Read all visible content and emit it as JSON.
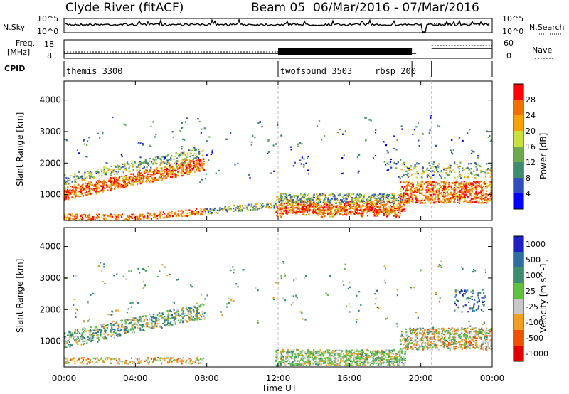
{
  "header": {
    "site": "Clyde River (fitACF)",
    "beam": "Beam 05",
    "dates": "06/Mar/2016 - 07/Mar/2016"
  },
  "top_panels": {
    "nsky_label": "N.Sky",
    "nsky_ticks": [
      "10^5",
      "10^0"
    ],
    "nsky_right_ticks": [
      "10^5",
      "10^0"
    ],
    "nsearch_label": "N.Search",
    "freq_label_1": "Freq.",
    "freq_label_2": "[MHz]",
    "freq_ticks": [
      "18",
      "8"
    ],
    "nave_ticks": [
      "60",
      "0"
    ],
    "nave_label": "Nave",
    "cpid_label": "CPID",
    "cpid_segments": [
      {
        "label": "themis 3300",
        "start_h": 0,
        "end_h": 12
      },
      {
        "label": "twofsound 3503",
        "start_h": 12,
        "end_h": 19.5
      },
      {
        "label": "rbsp 200",
        "start_h": 19.5,
        "end_h": 20.6
      }
    ]
  },
  "x_axis": {
    "label": "Time UT",
    "range_h": [
      0,
      24
    ],
    "ticks": [
      "00:00",
      "04:00",
      "08:00",
      "12:00",
      "16:00",
      "20:00",
      "00:00"
    ]
  },
  "colors": {
    "power": [
      "#0000ff",
      "#2f4fbf",
      "#3c8c6e",
      "#6fa94e",
      "#c8e040",
      "#f5a300",
      "#f07000",
      "#ff0000"
    ],
    "velocity": [
      "#e00000",
      "#f05000",
      "#f0a020",
      "#c8c8c8",
      "#60c040",
      "#3c8c6e",
      "#2f6f9f",
      "#2020c0"
    ]
  },
  "chart_data": [
    {
      "type": "heatmap",
      "name": "power",
      "ylabel": "Slant Range [km]",
      "yticks": [
        "1000",
        "2000",
        "3000",
        "4000"
      ],
      "ylim": [
        180,
        4600
      ],
      "colorbar_label": "Power [dB]",
      "colorbar_ticks": [
        "4",
        "8",
        "12",
        "16",
        "20",
        "24",
        "28"
      ],
      "colorbar_range": [
        0,
        32
      ]
    },
    {
      "type": "heatmap",
      "name": "velocity",
      "ylabel": "Slant Range [km]",
      "yticks": [
        "1000",
        "2000",
        "3000",
        "4000"
      ],
      "ylim": [
        180,
        4600
      ],
      "colorbar_label": "Velocity [m s^-1]",
      "colorbar_ticks": [
        "1000",
        "500",
        "100",
        "25",
        "-25",
        "-100",
        "-500",
        "-1000"
      ]
    }
  ]
}
